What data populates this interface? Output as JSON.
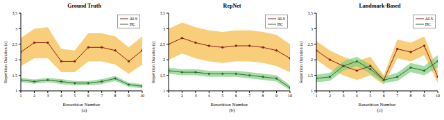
{
  "chart_data": [
    {
      "type": "line",
      "title": "Ground Truth",
      "subtitle": "(a)",
      "x_label": "Repetition Number",
      "y_label": "Repetition Duration (s)",
      "x": [
        1,
        2,
        3,
        4,
        5,
        6,
        7,
        8,
        9,
        10
      ],
      "xlim": [
        1,
        10
      ],
      "xticks": [
        1,
        2,
        3,
        4,
        5,
        6,
        7,
        8,
        9,
        10
      ],
      "ylim": [
        1,
        3.5
      ],
      "yticks": [
        1,
        1.5,
        2,
        2.5,
        3,
        3.5
      ],
      "legend": "upper right",
      "series": [
        {
          "name": "ALS",
          "color": "#8b1a1a",
          "marker": "circle",
          "values": [
            2.25,
            2.55,
            2.55,
            1.95,
            1.95,
            2.4,
            2.4,
            2.3,
            1.95,
            2.3
          ],
          "lower": [
            1.8,
            2.05,
            2.05,
            1.6,
            1.6,
            1.95,
            1.95,
            1.85,
            1.55,
            1.85
          ],
          "upper": [
            2.7,
            3.0,
            3.05,
            2.35,
            2.3,
            2.85,
            2.85,
            2.75,
            2.4,
            2.75
          ]
        },
        {
          "name": "HC",
          "color": "#2e6b2e",
          "marker": "circle",
          "values": [
            1.35,
            1.3,
            1.35,
            1.3,
            1.25,
            1.25,
            1.3,
            1.4,
            1.2,
            1.15
          ],
          "lower": [
            1.28,
            1.23,
            1.28,
            1.22,
            1.18,
            1.18,
            1.22,
            1.32,
            1.13,
            1.08
          ],
          "upper": [
            1.42,
            1.37,
            1.42,
            1.38,
            1.32,
            1.32,
            1.38,
            1.48,
            1.27,
            1.22
          ]
        }
      ]
    },
    {
      "type": "line",
      "title": "RepNet",
      "subtitle": "(b)",
      "x_label": "Repetition Number",
      "y_label": "Repetition Duration (s)",
      "x": [
        1,
        2,
        3,
        4,
        5,
        6,
        7,
        8,
        9,
        10
      ],
      "xlim": [
        1,
        10
      ],
      "xticks": [
        1,
        2,
        3,
        4,
        5,
        6,
        7,
        8,
        9,
        10
      ],
      "ylim": [
        1,
        3.5
      ],
      "yticks": [
        1,
        1.5,
        2,
        2.5,
        3,
        3.5
      ],
      "legend": "upper right",
      "series": [
        {
          "name": "ALS",
          "color": "#8b1a1a",
          "marker": "circle",
          "values": [
            2.5,
            2.7,
            2.55,
            2.45,
            2.4,
            2.45,
            2.45,
            2.4,
            2.3,
            2.05
          ],
          "lower": [
            2.0,
            2.2,
            2.05,
            1.95,
            1.9,
            1.95,
            1.95,
            1.9,
            1.8,
            1.6
          ],
          "upper": [
            3.0,
            3.2,
            3.05,
            2.95,
            2.9,
            2.95,
            2.95,
            2.9,
            2.8,
            2.5
          ]
        },
        {
          "name": "HC",
          "color": "#2e6b2e",
          "marker": "circle",
          "values": [
            1.65,
            1.6,
            1.6,
            1.55,
            1.55,
            1.55,
            1.5,
            1.45,
            1.4,
            1.1
          ],
          "lower": [
            1.55,
            1.5,
            1.5,
            1.45,
            1.45,
            1.45,
            1.4,
            1.35,
            1.3,
            1.02
          ],
          "upper": [
            1.75,
            1.7,
            1.7,
            1.65,
            1.65,
            1.65,
            1.6,
            1.55,
            1.5,
            1.18
          ]
        }
      ]
    },
    {
      "type": "line",
      "title": "Landmark-Based",
      "subtitle": "(c)",
      "x_label": "Repetition Number",
      "y_label": "Repetition Duration (s)",
      "x": [
        1,
        2,
        3,
        4,
        5,
        6,
        7,
        8,
        9,
        10
      ],
      "xlim": [
        1,
        10
      ],
      "xticks": [
        1,
        2,
        3,
        4,
        5,
        6,
        7,
        8,
        9,
        10
      ],
      "ylim": [
        1,
        3.5
      ],
      "yticks": [
        1,
        1.5,
        2,
        2.5,
        3,
        3.5
      ],
      "legend": "upper right",
      "series": [
        {
          "name": "ALS",
          "color": "#8b1a1a",
          "marker": "circle",
          "values": [
            2.3,
            2.0,
            1.8,
            1.65,
            1.8,
            1.35,
            2.35,
            2.25,
            2.45,
            1.45
          ],
          "lower": [
            2.0,
            1.7,
            1.5,
            1.35,
            1.5,
            1.2,
            2.05,
            1.95,
            2.15,
            1.25
          ],
          "upper": [
            2.6,
            2.3,
            2.1,
            1.95,
            2.1,
            1.5,
            2.65,
            2.55,
            2.75,
            1.65
          ]
        },
        {
          "name": "HC",
          "color": "#2e6b2e",
          "marker": "circle",
          "values": [
            1.4,
            1.45,
            1.8,
            1.95,
            1.7,
            1.35,
            1.45,
            1.75,
            1.65,
            1.95
          ],
          "lower": [
            1.28,
            1.32,
            1.65,
            1.8,
            1.55,
            1.25,
            1.32,
            1.6,
            1.5,
            1.75
          ],
          "upper": [
            1.52,
            1.58,
            1.95,
            2.1,
            1.85,
            1.45,
            1.58,
            1.9,
            1.8,
            2.15
          ]
        }
      ]
    }
  ]
}
